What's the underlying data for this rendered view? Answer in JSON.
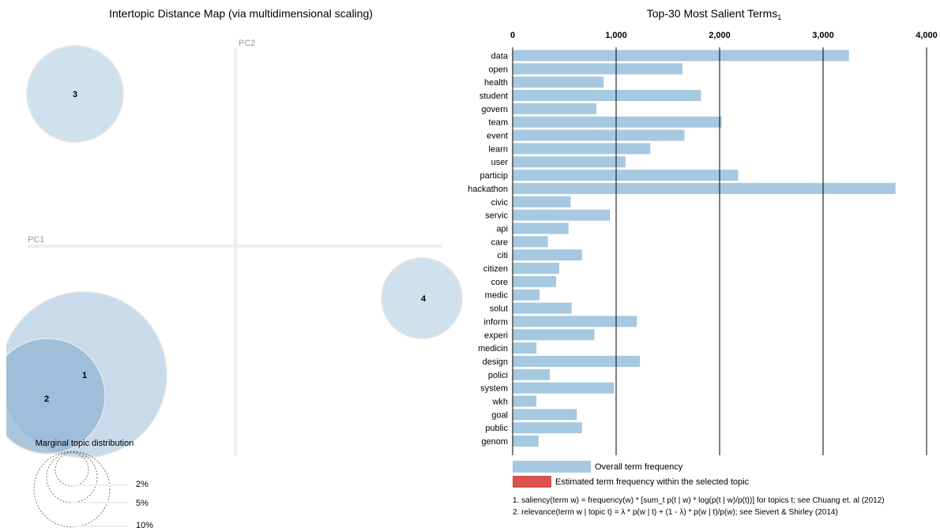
{
  "left_panel": {
    "title": "Intertopic Distance Map (via multidimensional scaling)",
    "axis_labels": {
      "pc1": "PC1",
      "pc2": "PC2"
    },
    "topics": [
      {
        "id": "1",
        "label": "1",
        "color": "#9fc2dd"
      },
      {
        "id": "2",
        "label": "2",
        "color": "#7ea9cc"
      },
      {
        "id": "3",
        "label": "3",
        "color": "#c4d9ea"
      },
      {
        "id": "4",
        "label": "4",
        "color": "#c4d9ea"
      }
    ],
    "marginal": {
      "title": "Marginal topic distribution",
      "legend": [
        {
          "label": "2%"
        },
        {
          "label": "5%"
        },
        {
          "label": "10%"
        }
      ]
    }
  },
  "chart_data": {
    "type": "bar",
    "title": "Top-30 Most Salient Terms",
    "title_sup": "1",
    "orientation": "horizontal",
    "xlim": [
      0,
      4000
    ],
    "xticks": [
      "0",
      "1,000",
      "2,000",
      "3,000",
      "4,000"
    ],
    "categories": [
      "data",
      "open",
      "health",
      "student",
      "govern",
      "team",
      "event",
      "learn",
      "user",
      "particip",
      "hackathon",
      "civic",
      "servic",
      "api",
      "care",
      "citi",
      "citizen",
      "core",
      "medic",
      "solut",
      "inform",
      "experi",
      "medicin",
      "design",
      "polici",
      "system",
      "wkh",
      "goal",
      "public",
      "genom"
    ],
    "series": [
      {
        "name": "Overall term frequency",
        "color": "#a6c8e0",
        "values": [
          3250,
          1640,
          880,
          1820,
          810,
          2020,
          1660,
          1330,
          1090,
          2180,
          3700,
          560,
          940,
          540,
          340,
          670,
          450,
          420,
          260,
          570,
          1200,
          790,
          230,
          1230,
          360,
          980,
          230,
          620,
          670,
          250
        ]
      }
    ],
    "legend": [
      {
        "label": "Overall term frequency",
        "color": "#a6c8e0"
      },
      {
        "label": "Estimated term frequency within the selected topic",
        "color": "#d9534f"
      }
    ],
    "footnotes": [
      "1. saliency(term w) = frequency(w) * [sum_t p(t | w) * log(p(t | w)/p(t))] for topics t; see Chuang et. al (2012)",
      "2. relevance(term w | topic t) = λ * p(w | t) + (1 - λ) * p(w | t)/p(w); see Sievert & Shirley (2014)"
    ]
  }
}
